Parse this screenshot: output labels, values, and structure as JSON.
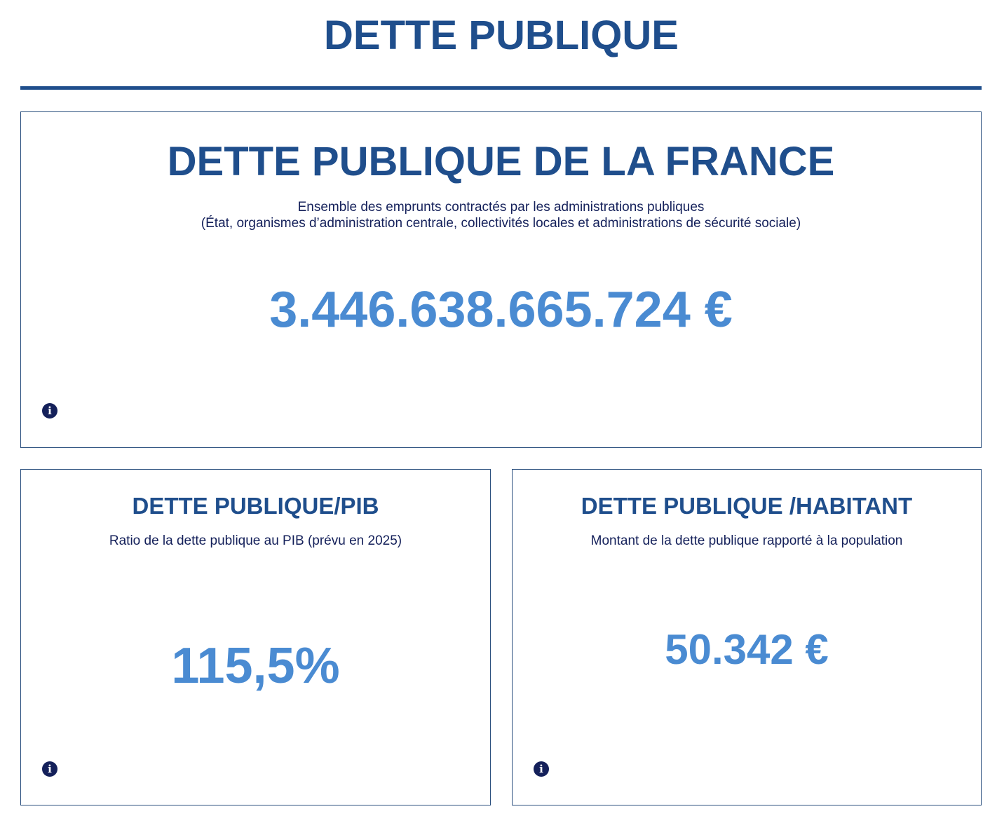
{
  "header": {
    "title": "DETTE PUBLIQUE"
  },
  "cards": {
    "main": {
      "title": "DETTE PUBLIQUE DE LA FRANCE",
      "description_line1": "Ensemble des emprunts contractés par les administrations publiques",
      "description_line2": "(État, organismes d’administration centrale, collectivités locales et administrations de sécurité sociale)",
      "value": "3.446.638.665.724 €",
      "info_icon": "info-icon"
    },
    "pib": {
      "title": "DETTE PUBLIQUE/PIB",
      "description": "Ratio de la dette publique au PIB (prévu en 2025)",
      "value": "115,5%",
      "info_icon": "info-icon"
    },
    "habitant": {
      "title": "DETTE PUBLIQUE /HABITANT",
      "description": "Montant de la dette publique rapporté à la population",
      "value": "50.342 €",
      "info_icon": "info-icon"
    }
  },
  "colors": {
    "title": "#1f4e8c",
    "value": "#4a8bd2",
    "text": "#14205a",
    "border": "#2a4f7e"
  }
}
